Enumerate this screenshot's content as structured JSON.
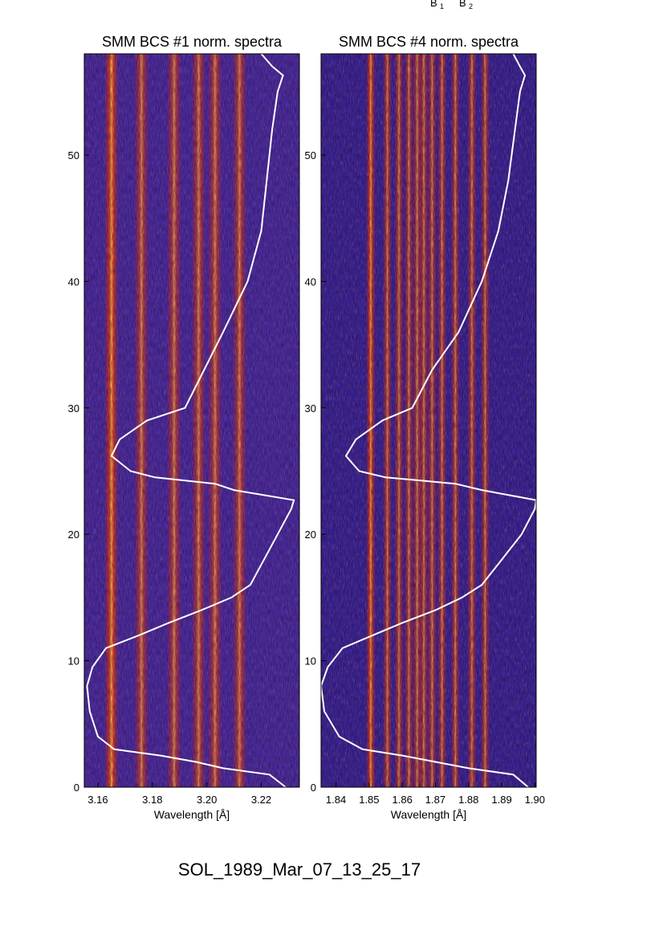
{
  "top_labels": [
    "B",
    "1",
    "B",
    "2"
  ],
  "footer_title": "SOL_1989_Mar_07_13_25_17",
  "chart_data": [
    {
      "type": "heatmap",
      "title": "SMM BCS #1 norm. spectra",
      "xlabel": "Wavelength [Å]",
      "ylabel": "",
      "xlim": [
        3.155,
        3.234
      ],
      "ylim": [
        0,
        58
      ],
      "x_ticks": [
        "3.16",
        "3.18",
        "3.20",
        "3.22"
      ],
      "y_ticks": [
        "0",
        "10",
        "20",
        "30",
        "40",
        "50"
      ],
      "grid": false,
      "emission_lines_A": [
        3.165,
        3.176,
        3.188,
        3.197,
        3.203,
        3.212
      ],
      "overlay_curve": {
        "color": "#ffffff",
        "points": [
          [
            3.229,
            0
          ],
          [
            3.223,
            1
          ],
          [
            3.206,
            1.5
          ],
          [
            3.196,
            2
          ],
          [
            3.183,
            2.5
          ],
          [
            3.166,
            3
          ],
          [
            3.16,
            4
          ],
          [
            3.157,
            6
          ],
          [
            3.156,
            8
          ],
          [
            3.158,
            9.5
          ],
          [
            3.163,
            11
          ],
          [
            3.175,
            12
          ],
          [
            3.186,
            13
          ],
          [
            3.198,
            14
          ],
          [
            3.209,
            15
          ],
          [
            3.216,
            16
          ],
          [
            3.221,
            18
          ],
          [
            3.226,
            20
          ],
          [
            3.231,
            22
          ],
          [
            3.232,
            22.7
          ],
          [
            3.21,
            23.5
          ],
          [
            3.203,
            24
          ],
          [
            3.181,
            24.5
          ],
          [
            3.172,
            25
          ],
          [
            3.165,
            26.2
          ],
          [
            3.168,
            27.5
          ],
          [
            3.178,
            29
          ],
          [
            3.192,
            30
          ],
          [
            3.199,
            33
          ],
          [
            3.206,
            36
          ],
          [
            3.215,
            40
          ],
          [
            3.22,
            44
          ],
          [
            3.222,
            48
          ],
          [
            3.224,
            52
          ],
          [
            3.226,
            55
          ],
          [
            3.228,
            56.3
          ],
          [
            3.224,
            57
          ],
          [
            3.22,
            58
          ]
        ]
      }
    },
    {
      "type": "heatmap",
      "title": "SMM BCS #4 norm. spectra",
      "xlabel": "Wavelength [Å]",
      "ylabel": "",
      "xlim": [
        1.8355,
        1.9004
      ],
      "ylim": [
        0,
        58
      ],
      "x_ticks": [
        "1.84",
        "1.85",
        "1.86",
        "1.87",
        "1.88",
        "1.89",
        "1.90"
      ],
      "y_ticks": [
        "0",
        "10",
        "20",
        "30",
        "40",
        "50"
      ],
      "grid": false,
      "emission_lines_A": [
        1.8505,
        1.8555,
        1.859,
        1.862,
        1.8645,
        1.8665,
        1.869,
        1.872,
        1.876,
        1.881,
        1.885
      ],
      "overlay_curve": {
        "color": "#ffffff",
        "points": [
          [
            1.898,
            0
          ],
          [
            1.8935,
            1
          ],
          [
            1.88,
            1.5
          ],
          [
            1.87,
            2
          ],
          [
            1.86,
            2.5
          ],
          [
            1.848,
            3
          ],
          [
            1.841,
            4
          ],
          [
            1.8365,
            6
          ],
          [
            1.8355,
            8
          ],
          [
            1.8375,
            9.5
          ],
          [
            1.842,
            11
          ],
          [
            1.851,
            12
          ],
          [
            1.86,
            13
          ],
          [
            1.87,
            14
          ],
          [
            1.878,
            15
          ],
          [
            1.884,
            16
          ],
          [
            1.89,
            18
          ],
          [
            1.896,
            20
          ],
          [
            1.9,
            22
          ],
          [
            1.9004,
            22.7
          ],
          [
            1.884,
            23.5
          ],
          [
            1.876,
            24
          ],
          [
            1.855,
            24.5
          ],
          [
            1.847,
            25
          ],
          [
            1.843,
            26.2
          ],
          [
            1.846,
            27.5
          ],
          [
            1.854,
            29
          ],
          [
            1.863,
            30
          ],
          [
            1.869,
            33
          ],
          [
            1.877,
            36
          ],
          [
            1.884,
            40
          ],
          [
            1.889,
            44
          ],
          [
            1.892,
            48
          ],
          [
            1.894,
            52
          ],
          [
            1.8955,
            55
          ],
          [
            1.897,
            56.3
          ],
          [
            1.8955,
            57
          ],
          [
            1.8935,
            58
          ]
        ]
      }
    }
  ]
}
